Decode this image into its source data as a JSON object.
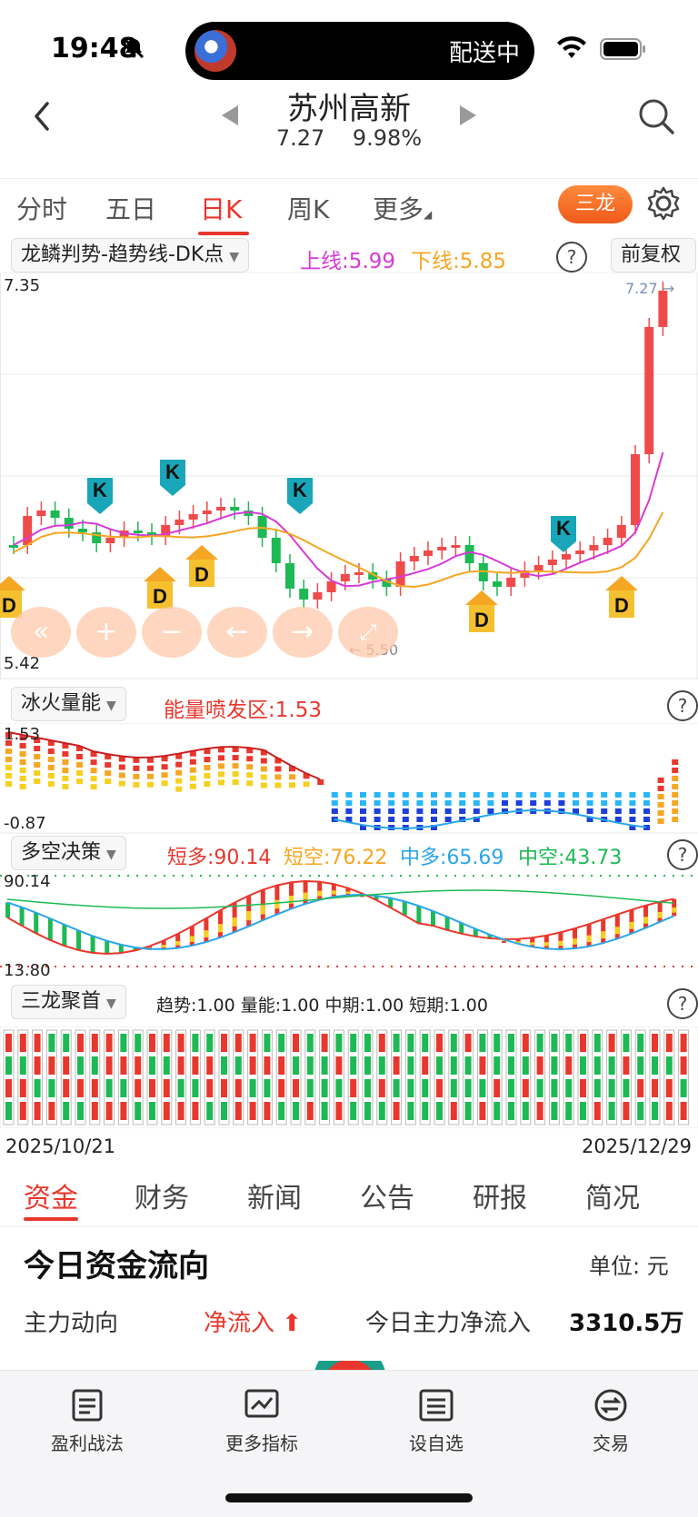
{
  "status": {
    "time": "19:48",
    "island_text": "配送中"
  },
  "header": {
    "stock_name": "苏州高新",
    "price": "7.27",
    "change_pct": "9.98%"
  },
  "period_tabs": [
    "分时",
    "五日",
    "日K",
    "周K",
    "更多"
  ],
  "period_active": 2,
  "sanlong_label": "三龙",
  "main_indicator": {
    "name": "龙鳞判势-趋势线-DK点",
    "upper_label": "上线:5.99",
    "lower_label": "下线:5.85",
    "restore_label": "前复权",
    "y_high": "7.35",
    "y_low": "5.42",
    "last_price_tag": "7.27",
    "low_tag": "5.50"
  },
  "vol_indicator": {
    "name": "冰火量能",
    "label": "能量喷发区:1.53",
    "y_high": "1.53",
    "y_low": "-0.87"
  },
  "ls_indicator": {
    "name": "多空决策",
    "short_long": "短多:90.14",
    "short_short": "短空:76.22",
    "mid_long": "中多:65.69",
    "mid_short": "中空:43.73",
    "y_high": "90.14",
    "y_low": "13.80"
  },
  "sl_indicator": {
    "name": "三龙聚首",
    "label": "趋势:1.00 量能:1.00 中期:1.00 短期:1.00"
  },
  "date_start": "2025/10/21",
  "date_end": "2025/12/29",
  "fund_tabs": [
    "资金",
    "财务",
    "新闻",
    "公告",
    "研报",
    "简况"
  ],
  "fund_flow": {
    "title": "今日资金流向",
    "unit": "单位: 元",
    "main_label": "主力动向",
    "direction": "净流入",
    "net_label": "今日主力净流入",
    "net_value": "3310.5万"
  },
  "bottom_nav": [
    "盈利战法",
    "更多指标",
    "设自选",
    "交易"
  ],
  "colors": {
    "up": "#ef4b4b",
    "down": "#1db954",
    "accent": "#e8372d",
    "upper_line": "#d63ad6",
    "lower_line": "#f5a623"
  },
  "chart_data": {
    "type": "candlestick",
    "x_range": [
      "2025/10/21",
      "2025/12/29"
    ],
    "ylim": [
      5.42,
      7.35
    ],
    "markers": {
      "K": 4,
      "D": 7
    },
    "last_close": 7.27
  }
}
